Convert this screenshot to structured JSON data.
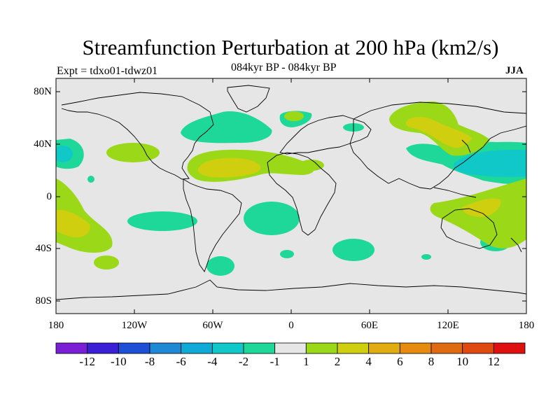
{
  "title": "Streamfunction Perturbation at 200 hPa (km2/s)",
  "subtitle_left": "Expt = tdxo01-tdwz01",
  "subtitle_center": "084kyr BP - 084kyr BP",
  "subtitle_right": "JJA",
  "lat_labels": [
    "80N",
    "40N",
    "0",
    "40S",
    "80S"
  ],
  "lon_labels": [
    "180",
    "120W",
    "60W",
    "0",
    "60E",
    "120E",
    "180"
  ],
  "colorbar": {
    "colors": [
      "#7a1fd6",
      "#3a1fd6",
      "#1e4fd6",
      "#1e8ad6",
      "#10aad8",
      "#10c8c8",
      "#1ed89a",
      "#e6e6e6",
      "#9ad818",
      "#cfcf10",
      "#e0ac10",
      "#e68a10",
      "#e06a10",
      "#e04a10",
      "#e01010"
    ],
    "labels": [
      "-12",
      "-10",
      "-8",
      "-6",
      "-4",
      "-2",
      "-1",
      "1",
      "2",
      "4",
      "6",
      "8",
      "10",
      "12"
    ]
  },
  "colors": {
    "background": "#e6e6e6",
    "positive_weak": "#9ad818",
    "positive_mid": "#cfcf10",
    "negative_weak": "#1ed89a",
    "negative_mid": "#10c8c8"
  }
}
